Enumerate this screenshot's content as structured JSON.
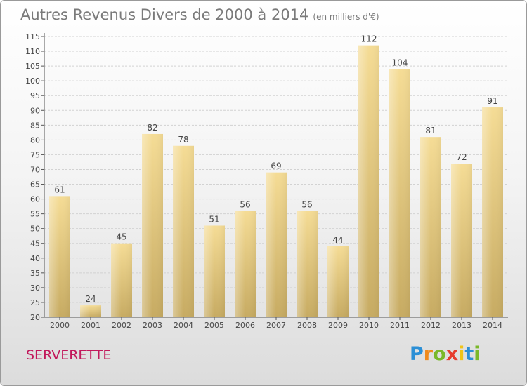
{
  "title": "Autres Revenus Divers de 2000 à 2014",
  "subtitle": "(en milliers d'€)",
  "place": "SERVERETTE",
  "logo": {
    "letters": [
      "P",
      "r",
      "o",
      "x",
      "i",
      "t",
      "i"
    ],
    "colors": [
      "#2b8fd6",
      "#f08a1c",
      "#7ab829",
      "#e63c2e",
      "#f0c419",
      "#2b8fd6",
      "#7ab829"
    ]
  },
  "chart_data": {
    "type": "bar",
    "categories": [
      "2000",
      "2001",
      "2002",
      "2003",
      "2004",
      "2005",
      "2006",
      "2007",
      "2008",
      "2009",
      "2010",
      "2011",
      "2012",
      "2013",
      "2014"
    ],
    "values": [
      61,
      24,
      45,
      82,
      78,
      51,
      56,
      69,
      56,
      44,
      112,
      104,
      81,
      72,
      91
    ],
    "ylim": [
      20,
      115
    ],
    "yticks": [
      20,
      25,
      30,
      35,
      40,
      45,
      50,
      55,
      60,
      65,
      70,
      75,
      80,
      85,
      90,
      95,
      100,
      105,
      110,
      115
    ],
    "grid": true,
    "bar_color": "#e8cc7a"
  }
}
